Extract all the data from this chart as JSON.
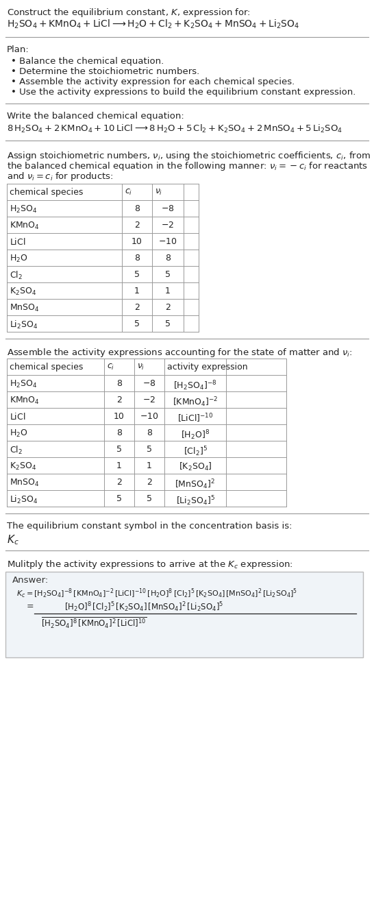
{
  "bg_color": "#ffffff",
  "text_color": "#222222",
  "title_line1": "Construct the equilibrium constant, $K$, expression for:",
  "title_line2": "$\\mathrm{H_2SO_4 + KMnO_4 + LiCl \\longrightarrow H_2O + Cl_2 + K_2SO_4 + MnSO_4 + Li_2SO_4}$",
  "plan_header": "Plan:",
  "plan_items": [
    "Balance the chemical equation.",
    "Determine the stoichiometric numbers.",
    "Assemble the activity expression for each chemical species.",
    "Use the activity expressions to build the equilibrium constant expression."
  ],
  "balanced_header": "Write the balanced chemical equation:",
  "balanced_eq": "$8\\,\\mathrm{H_2SO_4} + 2\\,\\mathrm{KMnO_4} + 10\\,\\mathrm{LiCl} \\longrightarrow 8\\,\\mathrm{H_2O} + 5\\,\\mathrm{Cl_2} + \\mathrm{K_2SO_4} + 2\\,\\mathrm{MnSO_4} + 5\\,\\mathrm{Li_2SO_4}$",
  "stoich_intro1": "Assign stoichiometric numbers, $\\nu_i$, using the stoichiometric coefficients, $c_i$, from",
  "stoich_intro2": "the balanced chemical equation in the following manner: $\\nu_i = -c_i$ for reactants",
  "stoich_intro3": "and $\\nu_i = c_i$ for products:",
  "table1_headers": [
    "chemical species",
    "$c_i$",
    "$\\nu_i$"
  ],
  "table1_data": [
    [
      "$\\mathrm{H_2SO_4}$",
      "8",
      "$-8$"
    ],
    [
      "$\\mathrm{KMnO_4}$",
      "2",
      "$-2$"
    ],
    [
      "$\\mathrm{LiCl}$",
      "10",
      "$-10$"
    ],
    [
      "$\\mathrm{H_2O}$",
      "8",
      "8"
    ],
    [
      "$\\mathrm{Cl_2}$",
      "5",
      "5"
    ],
    [
      "$\\mathrm{K_2SO_4}$",
      "1",
      "1"
    ],
    [
      "$\\mathrm{MnSO_4}$",
      "2",
      "2"
    ],
    [
      "$\\mathrm{Li_2SO_4}$",
      "5",
      "5"
    ]
  ],
  "activity_intro": "Assemble the activity expressions accounting for the state of matter and $\\nu_i$:",
  "table2_headers": [
    "chemical species",
    "$c_i$",
    "$\\nu_i$",
    "activity expression"
  ],
  "table2_data": [
    [
      "$\\mathrm{H_2SO_4}$",
      "8",
      "$-8$",
      "$[\\mathrm{H_2SO_4}]^{-8}$"
    ],
    [
      "$\\mathrm{KMnO_4}$",
      "2",
      "$-2$",
      "$[\\mathrm{KMnO_4}]^{-2}$"
    ],
    [
      "$\\mathrm{LiCl}$",
      "10",
      "$-10$",
      "$[\\mathrm{LiCl}]^{-10}$"
    ],
    [
      "$\\mathrm{H_2O}$",
      "8",
      "8",
      "$[\\mathrm{H_2O}]^{8}$"
    ],
    [
      "$\\mathrm{Cl_2}$",
      "5",
      "5",
      "$[\\mathrm{Cl_2}]^{5}$"
    ],
    [
      "$\\mathrm{K_2SO_4}$",
      "1",
      "1",
      "$[\\mathrm{K_2SO_4}]$"
    ],
    [
      "$\\mathrm{MnSO_4}$",
      "2",
      "2",
      "$[\\mathrm{MnSO_4}]^{2}$"
    ],
    [
      "$\\mathrm{Li_2SO_4}$",
      "5",
      "5",
      "$[\\mathrm{Li_2SO_4}]^{5}$"
    ]
  ],
  "kc_intro": "The equilibrium constant symbol in the concentration basis is:",
  "kc_symbol": "$K_c$",
  "multiply_intro": "Mulitply the activity expressions to arrive at the $K_c$ expression:",
  "answer_label": "Answer:",
  "answer_line1": "$K_c = [\\mathrm{H_2SO_4}]^{-8}\\,[\\mathrm{KMnO_4}]^{-2}\\,[\\mathrm{LiCl}]^{-10}\\,[\\mathrm{H_2O}]^{8}\\,[\\mathrm{Cl_2}]^{5}\\,[\\mathrm{K_2SO_4}]\\,[\\mathrm{MnSO_4}]^{2}\\,[\\mathrm{Li_2SO_4}]^{5}$",
  "answer_line2": "$\\quad\\quad\\quad [\\mathrm{H_2O}]^{8}\\,[\\mathrm{Cl_2}]^{5}\\,[\\mathrm{K_2SO_4}]\\,[\\mathrm{MnSO_4}]^{2}\\,[\\mathrm{Li_2SO_4}]^{5}$",
  "answer_line2_prefix": "$=$",
  "answer_line3": "$\\overline{[\\mathrm{H_2SO_4}]^{8}\\,[\\mathrm{KMnO_4}]^{2}\\,[\\mathrm{LiCl}]^{10}}$"
}
